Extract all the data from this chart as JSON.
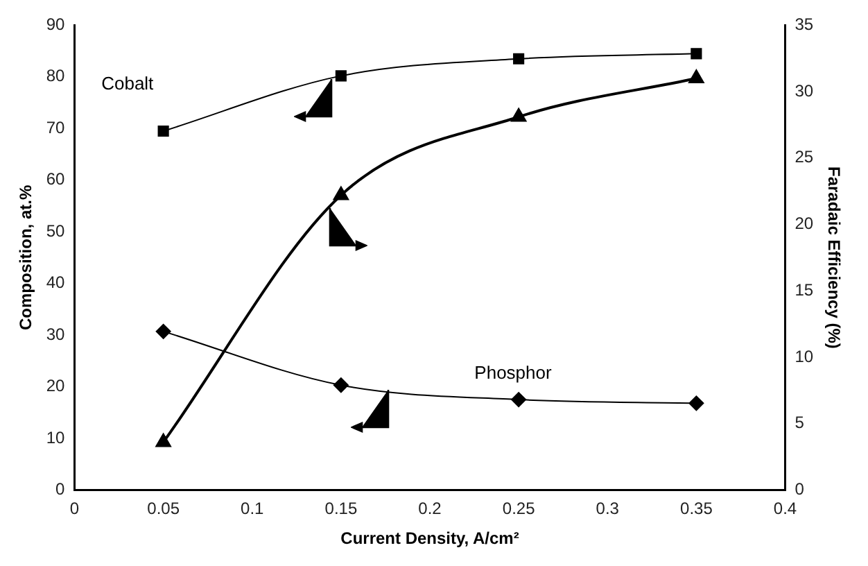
{
  "chart_data": {
    "type": "line",
    "xlabel": "Current Density, A/cm²",
    "ylabel": "Composition, at.%",
    "y2label": "Faradaic Efficiency (%)",
    "x": [
      0.05,
      0.15,
      0.25,
      0.35
    ],
    "series": [
      {
        "name": "Cobalt",
        "color": "#000000",
        "values": [
          69.5,
          80.2,
          83.5,
          84.5
        ],
        "marker": "square"
      },
      {
        "color": "#000000",
        "values": [
          3.6,
          22.2,
          28.1,
          31.0
        ],
        "marker": "triangle",
        "axis": "y2"
      },
      {
        "name": "Phosphor",
        "color": "#000000",
        "values": [
          30.7,
          20.3,
          17.5,
          16.8
        ],
        "marker": "diamond"
      }
    ],
    "xlim": [
      0,
      0.4
    ],
    "xticks": [
      0,
      0.05,
      0.1,
      0.15,
      0.2,
      0.25,
      0.3,
      0.35,
      0.4
    ],
    "ylim": [
      0,
      90
    ],
    "yticks": [
      0,
      10,
      20,
      30,
      40,
      50,
      60,
      70,
      80,
      90
    ],
    "y2lim": [
      0,
      35
    ],
    "y2ticks": [
      0,
      5,
      10,
      15,
      20,
      25,
      30,
      35
    ],
    "grid": false,
    "legend": false
  }
}
